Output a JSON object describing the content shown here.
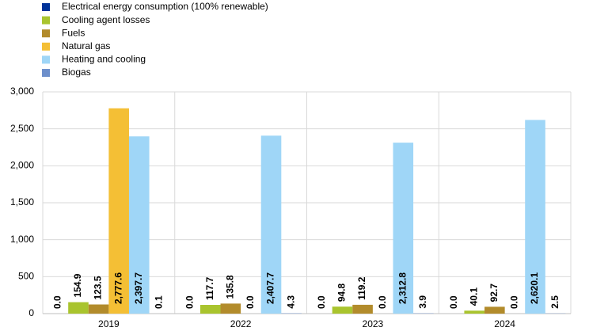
{
  "chart_data": {
    "type": "bar",
    "categories": [
      "2019",
      "2022",
      "2023",
      "2024"
    ],
    "series": [
      {
        "name": "Electrical energy consumption (100% renewable)",
        "color": "#003299",
        "values": [
          0,
          0,
          0,
          0
        ],
        "value_labels": [
          "0.0",
          "0.0",
          "0.0",
          "0.0"
        ]
      },
      {
        "name": "Cooling agent losses",
        "color": "#a9c42e",
        "values": [
          154.9,
          117.7,
          94.8,
          40.1
        ],
        "value_labels": [
          "154.9",
          "117.7",
          "94.8",
          "40.1"
        ]
      },
      {
        "name": "Fuels",
        "color": "#b28b2b",
        "values": [
          123.5,
          135.8,
          119.2,
          92.7
        ],
        "value_labels": [
          "123.5",
          "135.8",
          "119.2",
          "92.7"
        ]
      },
      {
        "name": "Natural gas",
        "color": "#f4bf35",
        "values": [
          2777.6,
          0,
          0,
          0
        ],
        "value_labels": [
          "2,777.6",
          "0.0",
          "0.0",
          "0.0"
        ]
      },
      {
        "name": "Heating and cooling",
        "color": "#9fd6f7",
        "values": [
          2397.7,
          2407.7,
          2312.8,
          2620.1
        ],
        "value_labels": [
          "2,397.7",
          "2,407.7",
          "2,312.8",
          "2,620.1"
        ]
      },
      {
        "name": "Biogas",
        "color": "#6d8fcb",
        "values": [
          0.1,
          4.3,
          3.9,
          2.5
        ],
        "value_labels": [
          "0.1",
          "4.3",
          "3.9",
          "2.5"
        ]
      }
    ],
    "ylim": [
      0,
      3000
    ],
    "yticks": [
      0,
      500,
      {
        "value": 1000,
        "label": "1,000"
      },
      {
        "value": 1500,
        "label": "1,500"
      },
      {
        "value": 2000,
        "label": "2,000"
      },
      {
        "value": 2500,
        "label": "2,500"
      },
      {
        "value": 3000,
        "label": "3,000"
      }
    ],
    "grid": true,
    "legend": "top-left"
  }
}
